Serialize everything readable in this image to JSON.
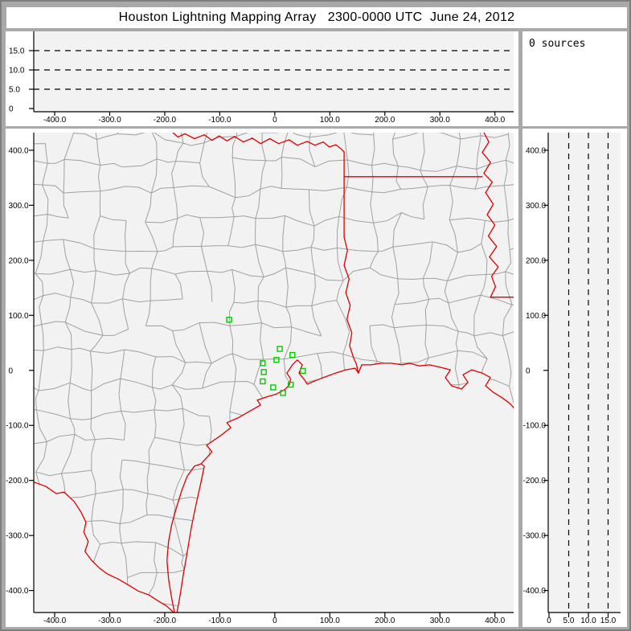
{
  "title": "Houston Lightning Mapping Array   2300-0000 UTC  June 24, 2012",
  "sources_panel": {
    "label": "0 sources"
  },
  "colors": {
    "window_bg": "#a9a9a9",
    "window_border": "#7e7e7e",
    "panel_bg": "#ffffff",
    "plot_bg": "#f2f2f2",
    "axis": "#000000",
    "dash_line": "#000000",
    "county_line": "#a0a0a0",
    "state_line": "#dd0000",
    "station": "#00cc00",
    "text": "#000000"
  },
  "chart_data": [
    {
      "id": "altitude-vs-eastwest",
      "type": "scatter",
      "title": "",
      "points": [],
      "points_count": 0,
      "xlim": [
        -438,
        434
      ],
      "ylim": [
        -1,
        20
      ],
      "x_ticks": {
        "values": [
          -400,
          -300,
          -200,
          -100,
          0,
          100,
          200,
          300,
          400
        ],
        "labels": [
          "-400.0",
          "-300.0",
          "-200.0",
          "-100.0",
          "0",
          "100.0",
          "200.0",
          "300.0",
          "400.0"
        ]
      },
      "y_ticks": {
        "values": [
          0,
          5,
          10,
          15
        ],
        "labels": [
          "0",
          "5.0",
          "10.0",
          "15.0"
        ]
      },
      "y_gridlines": [
        5,
        10,
        15
      ],
      "grid_style": "dashed"
    },
    {
      "id": "plan-view-map",
      "type": "scatter",
      "title": "",
      "points": [],
      "points_count": 0,
      "xlim": [
        -438,
        434
      ],
      "ylim": [
        -440,
        432
      ],
      "x_ticks": {
        "values": [
          -400,
          -300,
          -200,
          -100,
          0,
          100,
          200,
          300,
          400
        ],
        "labels": [
          "-400.0",
          "-300.0",
          "-200.0",
          "-100.0",
          "0",
          "100.0",
          "200.0",
          "300.0",
          "400.0"
        ]
      },
      "y_ticks": {
        "values": [
          400,
          300,
          200,
          100,
          0,
          -100,
          -200,
          -300,
          -400
        ],
        "labels": [
          "400.0",
          "300.0",
          "200.0",
          "100.0",
          "0",
          "-100.0",
          "-200.0",
          "-300.0",
          "-400.0"
        ]
      },
      "stations_km": [
        [
          -83,
          92
        ],
        [
          9,
          39
        ],
        [
          32,
          28
        ],
        [
          3,
          19
        ],
        [
          -22,
          13
        ],
        [
          -20,
          -3
        ],
        [
          51,
          -1
        ],
        [
          -22,
          -20
        ],
        [
          -3,
          -31
        ],
        [
          29,
          -26
        ],
        [
          15,
          -41
        ]
      ],
      "county_grid": {
        "spacing_km": 50,
        "jitter_km": 13,
        "seed": 7,
        "skip_prob": 0.1
      },
      "borders_km": {
        "red_river": [
          [
            -185,
            432
          ],
          [
            -176,
            424
          ],
          [
            -163,
            430
          ],
          [
            -146,
            421
          ],
          [
            -128,
            428
          ],
          [
            -114,
            418
          ],
          [
            -101,
            426
          ],
          [
            -87,
            417
          ],
          [
            -73,
            425
          ],
          [
            -57,
            415
          ],
          [
            -41,
            422
          ],
          [
            -26,
            412
          ],
          [
            -9,
            421
          ],
          [
            7,
            412
          ],
          [
            26,
            419
          ],
          [
            41,
            409
          ],
          [
            59,
            416
          ],
          [
            73,
            409
          ],
          [
            88,
            415
          ],
          [
            99,
            406
          ],
          [
            111,
            410
          ],
          [
            120,
            403
          ],
          [
            126,
            397
          ]
        ],
        "tx_ar_border": [
          [
            126,
            397
          ],
          [
            126,
            242
          ]
        ],
        "ar_la_border": [
          [
            126,
            352
          ],
          [
            377,
            352
          ]
        ],
        "sabine_river": [
          [
            126,
            242
          ],
          [
            132,
            218
          ],
          [
            126,
            191
          ],
          [
            135,
            166
          ],
          [
            129,
            141
          ],
          [
            137,
            118
          ],
          [
            131,
            93
          ],
          [
            140,
            68
          ],
          [
            136,
            45
          ],
          [
            143,
            23
          ],
          [
            148,
            12
          ],
          [
            152,
            -5
          ]
        ],
        "mississippi_river": [
          [
            380,
            432
          ],
          [
            389,
            415
          ],
          [
            377,
            396
          ],
          [
            392,
            378
          ],
          [
            380,
            358
          ],
          [
            395,
            342
          ],
          [
            383,
            323
          ],
          [
            397,
            302
          ],
          [
            386,
            283
          ],
          [
            400,
            264
          ],
          [
            388,
            244
          ],
          [
            403,
            225
          ],
          [
            390,
            206
          ],
          [
            406,
            188
          ],
          [
            394,
            171
          ],
          [
            401,
            152
          ],
          [
            392,
            133
          ]
        ],
        "la_ms_border": [
          [
            392,
            133
          ],
          [
            438,
            133
          ]
        ],
        "rio_grande": [
          [
            -438,
            -203
          ],
          [
            -416,
            -211
          ],
          [
            -397,
            -224
          ],
          [
            -383,
            -221
          ],
          [
            -365,
            -238
          ],
          [
            -353,
            -256
          ],
          [
            -343,
            -276
          ],
          [
            -347,
            -294
          ],
          [
            -339,
            -311
          ],
          [
            -345,
            -329
          ],
          [
            -333,
            -345
          ],
          [
            -318,
            -360
          ],
          [
            -304,
            -370
          ],
          [
            -285,
            -379
          ],
          [
            -266,
            -390
          ],
          [
            -248,
            -401
          ],
          [
            -229,
            -408
          ],
          [
            -212,
            -419
          ],
          [
            -197,
            -428
          ],
          [
            -187,
            -437
          ],
          [
            -182,
            -442
          ]
        ],
        "laguna_shore": [
          [
            -182,
            -442
          ],
          [
            -188,
            -411
          ],
          [
            -193,
            -379
          ],
          [
            -196,
            -345
          ],
          [
            -193,
            -311
          ],
          [
            -187,
            -279
          ],
          [
            -178,
            -247
          ],
          [
            -169,
            -218
          ],
          [
            -159,
            -192
          ],
          [
            -146,
            -174
          ],
          [
            -134,
            -170
          ]
        ],
        "padre_island": [
          [
            -178,
            -442
          ],
          [
            -172,
            -408
          ],
          [
            -166,
            -370
          ],
          [
            -159,
            -330
          ],
          [
            -152,
            -287
          ],
          [
            -143,
            -243
          ],
          [
            -134,
            -203
          ],
          [
            -128,
            -174
          ],
          [
            -134,
            -170
          ]
        ],
        "gulf_coast": [
          [
            -134,
            -170
          ],
          [
            -114,
            -148
          ],
          [
            -124,
            -136
          ],
          [
            -99,
            -119
          ],
          [
            -80,
            -104
          ],
          [
            -87,
            -95
          ],
          [
            -66,
            -86
          ],
          [
            -47,
            -75
          ],
          [
            -26,
            -63
          ],
          [
            -32,
            -54
          ],
          [
            -14,
            -48
          ],
          [
            3,
            -43
          ],
          [
            18,
            -35
          ],
          [
            26,
            -27
          ],
          [
            29,
            -16
          ],
          [
            22,
            -5
          ],
          [
            32,
            10
          ],
          [
            41,
            19
          ],
          [
            50,
            10
          ],
          [
            44,
            -5
          ],
          [
            53,
            -16
          ],
          [
            59,
            -25
          ],
          [
            73,
            -19
          ],
          [
            91,
            -12
          ],
          [
            110,
            -5
          ],
          [
            129,
            1
          ],
          [
            146,
            4
          ],
          [
            152,
            -5
          ],
          [
            158,
            10
          ],
          [
            175,
            10
          ],
          [
            193,
            13
          ],
          [
            212,
            13
          ],
          [
            231,
            10
          ],
          [
            245,
            13
          ],
          [
            263,
            8
          ],
          [
            281,
            10
          ],
          [
            300,
            6
          ],
          [
            319,
            1
          ],
          [
            310,
            -13
          ],
          [
            321,
            -28
          ],
          [
            339,
            -34
          ],
          [
            351,
            -22
          ],
          [
            342,
            -8
          ],
          [
            358,
            1
          ],
          [
            377,
            -5
          ],
          [
            392,
            -13
          ],
          [
            383,
            -28
          ],
          [
            397,
            -40
          ],
          [
            412,
            -49
          ],
          [
            427,
            -60
          ],
          [
            438,
            -72
          ]
        ]
      }
    },
    {
      "id": "altitude-vs-northsouth",
      "type": "scatter",
      "title": "",
      "points": [],
      "points_count": 0,
      "xlim": [
        -1.5,
        18.2
      ],
      "ylim": [
        -440,
        432
      ],
      "x_ticks": {
        "values": [
          0,
          5,
          10,
          15
        ],
        "labels": [
          "0",
          "5.0",
          "10.0",
          "15.0"
        ]
      },
      "y_ticks": {
        "values": [
          400,
          300,
          200,
          100,
          0,
          -100,
          -200,
          -300,
          -400
        ],
        "labels": [
          "400.0",
          "300.0",
          "200.0",
          "100.0",
          "0",
          "-100.0",
          "-200.0",
          "-300.0",
          "-400.0"
        ]
      },
      "x_gridlines": [
        5,
        10,
        15
      ],
      "grid_style": "dashed"
    }
  ]
}
